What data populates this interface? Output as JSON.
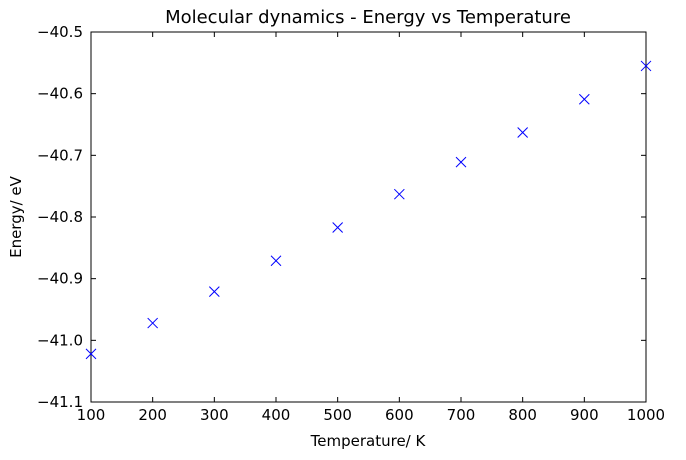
{
  "chart_data": {
    "type": "scatter",
    "title": "Molecular dynamics - Energy vs Temperature",
    "xlabel": "Temperature/ K",
    "ylabel": "Energy/ eV",
    "xlim": [
      100,
      1000
    ],
    "ylim": [
      -41.1,
      -40.5
    ],
    "x_ticks": [
      100,
      200,
      300,
      400,
      500,
      600,
      700,
      800,
      900,
      1000
    ],
    "y_ticks": [
      -40.5,
      -40.6,
      -40.7,
      -40.8,
      -40.9,
      -41.0,
      -41.1
    ],
    "x_tick_labels": [
      "100",
      "200",
      "300",
      "400",
      "500",
      "600",
      "700",
      "800",
      "900",
      "1000"
    ],
    "y_tick_labels": [
      "−40.5",
      "−40.6",
      "−40.7",
      "−40.8",
      "−40.9",
      "−41.0",
      "−41.1"
    ],
    "marker": "x",
    "grid": false,
    "colors": {
      "series": "#0000ff"
    },
    "series": [
      {
        "x": [
          100,
          200,
          300,
          400,
          500,
          600,
          700,
          800,
          900,
          1000
        ],
        "y": [
          -41.022,
          -40.972,
          -40.921,
          -40.871,
          -40.817,
          -40.763,
          -40.711,
          -40.663,
          -40.609,
          -40.555
        ]
      }
    ]
  }
}
